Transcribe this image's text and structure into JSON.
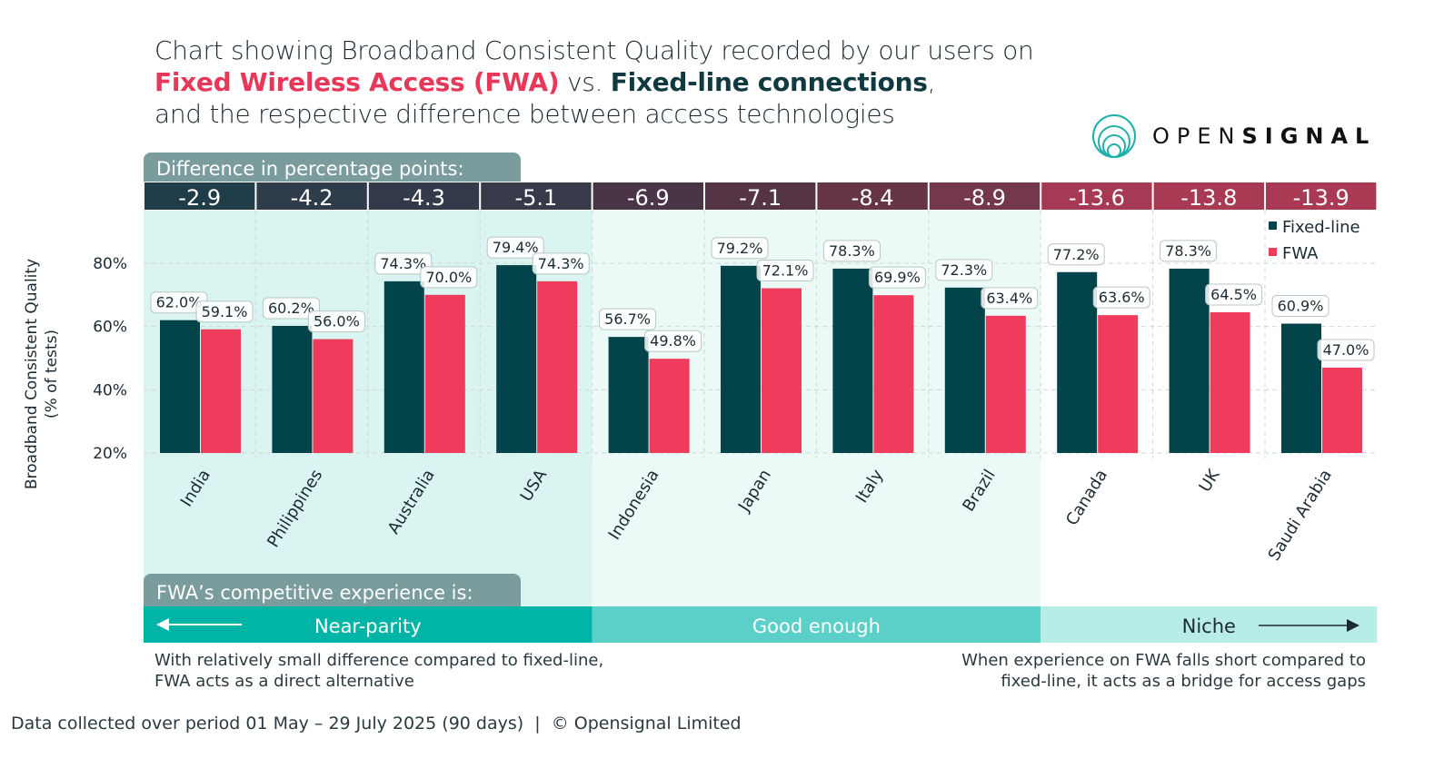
{
  "title": {
    "line1": "Chart showing Broadband Consistent Quality recorded by our users on",
    "fwa_label": "Fixed Wireless Access (FWA)",
    "vs": " vs. ",
    "fixed_label": "Fixed-line connections",
    "comma": ",",
    "line3": "and the respective difference between access technologies"
  },
  "logo": {
    "text_light": "OPEN",
    "text_bold": "SIGNAL"
  },
  "difference_header": "Difference in percentage points:",
  "experience_header": "FWA’s competitive experience is:",
  "categories_band": [
    {
      "label": "Near-parity",
      "color": "#00b5a5",
      "text_color": "#ffffff"
    },
    {
      "label": "Good enough",
      "color": "#5ad0c8",
      "text_color": "#ffffff"
    },
    {
      "label": "Niche",
      "color": "#b8ede7",
      "text_color": "#1c2b33"
    }
  ],
  "notes": {
    "left": [
      "With relatively small difference compared to fixed-line,",
      "FWA acts as a direct alternative"
    ],
    "right": [
      "When experience on FWA falls short compared to",
      "fixed-line, it acts as a bridge for access gaps"
    ]
  },
  "footer": "Data collected over period 01 May – 29 July 2025 (90 days)  |  © Opensignal Limited",
  "colors": {
    "fixed": "#03434a",
    "fwa": "#ef3b5c",
    "parity_bg": "#d9f4f1",
    "good_bg": "#ebfaf7"
  },
  "chart_data": {
    "type": "bar",
    "ylabel": "Broadband Consistent Quality\n(% of tests)",
    "ylabel_lines": [
      "Broadband Consistent Quality",
      "(% of tests)"
    ],
    "yticks": [
      "20%",
      "40%",
      "60%",
      "80%"
    ],
    "ylim": [
      20,
      100
    ],
    "grid": true,
    "legend_position": "top-right",
    "categories": [
      "India",
      "Philippines",
      "Australia",
      "USA",
      "Indonesia",
      "Japan",
      "Italy",
      "Brazil",
      "Canada",
      "UK",
      "Saudi Arabia"
    ],
    "series": [
      {
        "name": "Fixed-line",
        "values": [
          62.0,
          60.2,
          74.3,
          79.4,
          56.7,
          79.2,
          78.3,
          72.3,
          77.2,
          78.3,
          60.9
        ],
        "labels": [
          "62.0%",
          "60.2%",
          "74.3%",
          "79.4%",
          "56.7%",
          "79.2%",
          "78.3%",
          "72.3%",
          "77.2%",
          "78.3%",
          "60.9%"
        ]
      },
      {
        "name": "FWA",
        "values": [
          59.1,
          56.0,
          70.0,
          74.3,
          49.8,
          72.1,
          69.9,
          63.4,
          63.6,
          64.5,
          47.0
        ],
        "labels": [
          "59.1%",
          "56.0%",
          "70.0%",
          "74.3%",
          "49.8%",
          "72.1%",
          "69.9%",
          "63.4%",
          "63.6%",
          "64.5%",
          "47.0%"
        ]
      }
    ],
    "differences": [
      "-2.9",
      "-4.2",
      "-4.3",
      "-5.1",
      "-6.9",
      "-7.1",
      "-8.4",
      "-8.9",
      "-13.6",
      "-13.8",
      "-13.9"
    ],
    "difference_colors": [
      "#1f3d48",
      "#2f3c4a",
      "#333b4a",
      "#383a4a",
      "#4a3546",
      "#543445",
      "#653547",
      "#75384b",
      "#a63a54",
      "#a83a54",
      "#aa3a54"
    ],
    "groups": [
      "Near-parity",
      "Near-parity",
      "Near-parity",
      "Near-parity",
      "Good enough",
      "Good enough",
      "Good enough",
      "Good enough",
      "Niche",
      "Niche",
      "Niche"
    ]
  }
}
